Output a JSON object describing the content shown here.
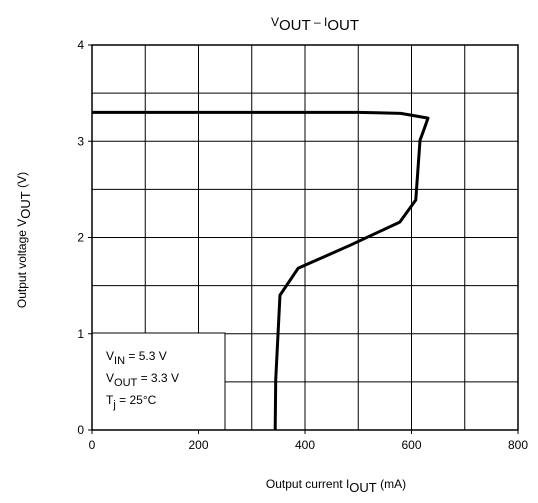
{
  "chart_data": {
    "type": "line",
    "title": [
      "V",
      "OUT",
      " – I",
      "OUT"
    ],
    "x_label": [
      "Output current  ",
      "I",
      "OUT",
      "  (mA)"
    ],
    "y_label": [
      "Output voltage   ",
      "V",
      "OUT",
      "   (V)"
    ],
    "annotations": [
      [
        "V",
        "IN",
        " = 5.3 V"
      ],
      [
        "V",
        "OUT",
        " = 3.3 V"
      ],
      [
        "T",
        "j",
        " = 25°C"
      ]
    ],
    "x": [
      0,
      500,
      580,
      631,
      622,
      616,
      608,
      578,
      485,
      387,
      353,
      345,
      344
    ],
    "series": [
      {
        "color": "#000000",
        "values": [
          3.3,
          3.3,
          3.29,
          3.24,
          3.1,
          3.01,
          2.39,
          2.16,
          1.92,
          1.68,
          1.4,
          0.52,
          0
        ]
      }
    ],
    "xlim": [
      0,
      800
    ],
    "xticks": [
      0,
      200,
      400,
      600,
      800
    ],
    "ylim": [
      0,
      4
    ],
    "yticks": [
      0,
      1,
      2,
      3,
      4
    ],
    "xgrid": [
      100,
      200,
      300,
      400,
      500,
      600,
      700
    ],
    "ygrid": [
      0.5,
      1,
      1.5,
      2,
      2.5,
      3,
      3.5
    ],
    "grid": true
  }
}
